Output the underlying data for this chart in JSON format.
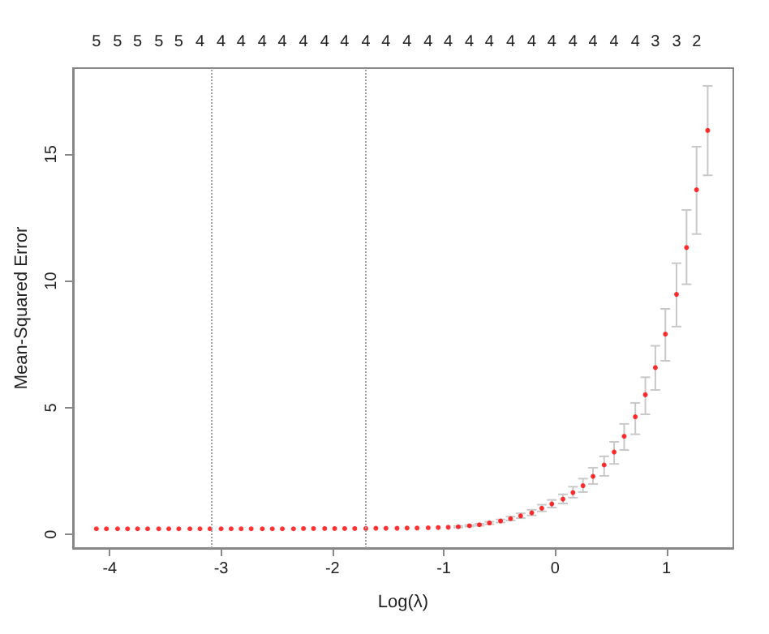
{
  "chart_data": {
    "type": "scatter",
    "xlabel": "Log(λ)",
    "ylabel": "Mean-Squared Error",
    "x": [
      -4.12,
      -4.03,
      -3.93,
      -3.84,
      -3.75,
      -3.66,
      -3.56,
      -3.47,
      -3.38,
      -3.28,
      -3.19,
      -3.1,
      -3.0,
      -2.91,
      -2.82,
      -2.73,
      -2.63,
      -2.54,
      -2.45,
      -2.35,
      -2.26,
      -2.17,
      -2.07,
      -1.98,
      -1.89,
      -1.8,
      -1.7,
      -1.61,
      -1.52,
      -1.42,
      -1.33,
      -1.24,
      -1.14,
      -1.05,
      -0.96,
      -0.87,
      -0.77,
      -0.68,
      -0.59,
      -0.49,
      -0.4,
      -0.31,
      -0.21,
      -0.12,
      -0.03,
      0.07,
      0.16,
      0.25,
      0.34,
      0.44,
      0.53,
      0.62,
      0.72,
      0.81,
      0.9,
      0.99,
      1.09,
      1.18,
      1.27,
      1.37
    ],
    "series": [
      {
        "color": "#ff0000",
        "values": [
          0.22,
          0.22,
          0.22,
          0.22,
          0.22,
          0.22,
          0.22,
          0.22,
          0.22,
          0.22,
          0.22,
          0.22,
          0.22,
          0.22,
          0.22,
          0.22,
          0.22,
          0.22,
          0.22,
          0.22,
          0.23,
          0.23,
          0.23,
          0.23,
          0.23,
          0.23,
          0.23,
          0.24,
          0.24,
          0.24,
          0.25,
          0.25,
          0.26,
          0.27,
          0.28,
          0.3,
          0.34,
          0.38,
          0.45,
          0.53,
          0.62,
          0.73,
          0.85,
          1.03,
          1.2,
          1.39,
          1.65,
          1.92,
          2.29,
          2.74,
          3.25,
          3.87,
          4.64,
          5.51,
          6.58,
          7.9,
          9.47,
          11.32,
          13.6,
          15.94
        ],
        "errors": [
          null,
          null,
          null,
          null,
          null,
          null,
          null,
          null,
          null,
          null,
          null,
          null,
          null,
          null,
          null,
          null,
          null,
          null,
          null,
          null,
          null,
          null,
          null,
          null,
          null,
          null,
          null,
          null,
          null,
          null,
          null,
          null,
          null,
          null,
          null,
          0.03,
          0.03,
          0.04,
          0.05,
          0.06,
          [
            0.55,
            0.7
          ],
          [
            0.64,
            0.83
          ],
          [
            0.75,
            0.97
          ],
          [
            0.91,
            1.17
          ],
          [
            1.06,
            1.36
          ],
          [
            1.22,
            1.58
          ],
          [
            1.45,
            1.88
          ],
          [
            1.67,
            2.2
          ],
          [
            1.99,
            2.63
          ],
          [
            2.31,
            3.08
          ],
          [
            2.78,
            3.65
          ],
          [
            3.33,
            4.36
          ],
          [
            3.95,
            5.19
          ],
          [
            4.74,
            6.2
          ],
          [
            5.7,
            7.44
          ],
          [
            6.85,
            8.9
          ],
          [
            8.2,
            10.7
          ],
          [
            9.87,
            12.8
          ],
          [
            11.85,
            15.3
          ],
          [
            14.17,
            17.7
          ]
        ]
      }
    ],
    "marker": "circle",
    "xlim": [
      -4.33,
      1.6
    ],
    "xticks": [
      -4,
      -3,
      -2,
      -1,
      0,
      1
    ],
    "ylim": [
      -0.54,
      18.4
    ],
    "yticks": [
      0,
      5,
      10,
      15
    ],
    "annotations": [
      "5",
      "5",
      "5",
      "5",
      "5",
      "4",
      "4",
      "4",
      "4",
      "4",
      "4",
      "4",
      "4",
      "4",
      "4",
      "4",
      "4",
      "4",
      "4",
      "4",
      "4",
      "4",
      "4",
      "4",
      "4",
      "4",
      "4",
      "3",
      "3",
      "2"
    ],
    "ref_lines": [
      {
        "axis": "x",
        "value": -3.09,
        "color": "#a0a0a0",
        "line_style": "dotted"
      },
      {
        "axis": "x",
        "value": -1.7,
        "color": "#a0a0a0",
        "line_style": "dotted"
      }
    ],
    "grid": false
  }
}
